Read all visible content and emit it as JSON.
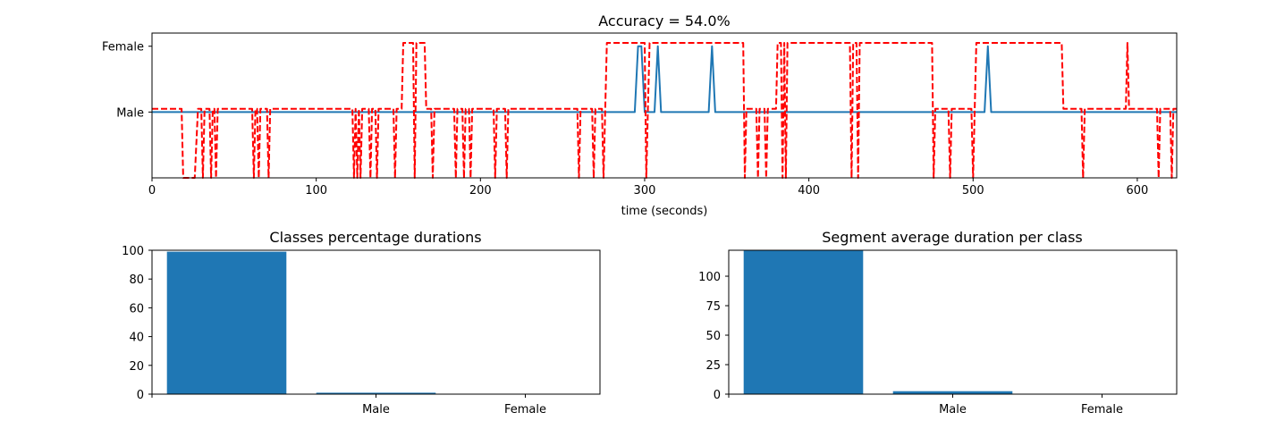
{
  "chart_data": [
    {
      "type": "line",
      "title": "Accuracy = 54.0%",
      "xlabel": "time (seconds)",
      "ylabel": "",
      "xlim": [
        0,
        624
      ],
      "ylim": [
        -1,
        1.2
      ],
      "x_ticks": [
        0,
        100,
        200,
        300,
        400,
        500,
        600
      ],
      "y_ticks": [
        {
          "value": 0,
          "label": "Male"
        },
        {
          "value": 1,
          "label": "Female"
        }
      ],
      "grid": false,
      "series": [
        {
          "color": "#1f77b4",
          "style": "solid",
          "points": [
            [
              0,
              0
            ],
            [
              294,
              0
            ],
            [
              296,
              1
            ],
            [
              298,
              1
            ],
            [
              300,
              0
            ],
            [
              306,
              0
            ],
            [
              308,
              1
            ],
            [
              310,
              0
            ],
            [
              339,
              0
            ],
            [
              341,
              1
            ],
            [
              343,
              0
            ],
            [
              507,
              0
            ],
            [
              509,
              1
            ],
            [
              511,
              0
            ],
            [
              624,
              0
            ]
          ]
        },
        {
          "color": "#ff0000",
          "style": "dashed",
          "points": [
            [
              0,
              0.05
            ],
            [
              18,
              0.05
            ],
            [
              19,
              -1
            ],
            [
              26,
              -1
            ],
            [
              28,
              0.05
            ],
            [
              30,
              0.05
            ],
            [
              31,
              -1
            ],
            [
              32,
              0.05
            ],
            [
              35,
              0.05
            ],
            [
              36,
              -1
            ],
            [
              37,
              0.05
            ],
            [
              38,
              0.05
            ],
            [
              39,
              -1
            ],
            [
              40,
              0.05
            ],
            [
              61,
              0.05
            ],
            [
              62,
              -1
            ],
            [
              63,
              0.05
            ],
            [
              64,
              0.05
            ],
            [
              65,
              -1
            ],
            [
              66,
              0.05
            ],
            [
              70,
              0.05
            ],
            [
              71,
              -1
            ],
            [
              72,
              0.05
            ],
            [
              122,
              0.05
            ],
            [
              123,
              -1
            ],
            [
              124,
              0.05
            ],
            [
              125,
              -1
            ],
            [
              126,
              0.05
            ],
            [
              127,
              -1
            ],
            [
              128,
              0.05
            ],
            [
              132,
              0.05
            ],
            [
              133,
              -1
            ],
            [
              134,
              0.05
            ],
            [
              136,
              0.05
            ],
            [
              137,
              -1
            ],
            [
              138,
              0.05
            ],
            [
              147,
              0.05
            ],
            [
              148,
              -1
            ],
            [
              149,
              0.05
            ],
            [
              152,
              0.05
            ],
            [
              153,
              1.05
            ],
            [
              159,
              1.05
            ],
            [
              160,
              -1
            ],
            [
              161,
              1.05
            ],
            [
              166,
              1.05
            ],
            [
              167,
              0.05
            ],
            [
              170,
              0.05
            ],
            [
              171,
              -1
            ],
            [
              172,
              0.05
            ],
            [
              184,
              0.05
            ],
            [
              185,
              -1
            ],
            [
              186,
              0.05
            ],
            [
              189,
              0.05
            ],
            [
              190,
              -1
            ],
            [
              191,
              0.05
            ],
            [
              193,
              0.05
            ],
            [
              194,
              -1
            ],
            [
              195,
              0.05
            ],
            [
              208,
              0.05
            ],
            [
              209,
              -1
            ],
            [
              210,
              0.05
            ],
            [
              215,
              0.05
            ],
            [
              216,
              -1
            ],
            [
              217,
              0.05
            ],
            [
              259,
              0.05
            ],
            [
              260,
              -1
            ],
            [
              261,
              0.05
            ],
            [
              268,
              0.05
            ],
            [
              269,
              -1
            ],
            [
              270,
              0.05
            ],
            [
              274,
              0.05
            ],
            [
              275,
              -1
            ],
            [
              276,
              0.05
            ],
            [
              277,
              1.05
            ],
            [
              300,
              1.05
            ],
            [
              301,
              -1
            ],
            [
              302,
              0.05
            ],
            [
              303,
              1.05
            ],
            [
              360,
              1.05
            ],
            [
              361,
              -1
            ],
            [
              362,
              0.05
            ],
            [
              368,
              0.05
            ],
            [
              369,
              -1
            ],
            [
              370,
              0.05
            ],
            [
              373,
              0.05
            ],
            [
              374,
              -1
            ],
            [
              375,
              0.05
            ],
            [
              380,
              0.05
            ],
            [
              381,
              1.05
            ],
            [
              383,
              1.05
            ],
            [
              384,
              -1
            ],
            [
              385,
              1.05
            ],
            [
              386,
              -1
            ],
            [
              387,
              1.05
            ],
            [
              425,
              1.05
            ],
            [
              426,
              -1
            ],
            [
              427,
              1.05
            ],
            [
              429,
              1.05
            ],
            [
              430,
              -1
            ],
            [
              431,
              1.05
            ],
            [
              475,
              1.05
            ],
            [
              476,
              -1
            ],
            [
              477,
              0.05
            ],
            [
              485,
              0.05
            ],
            [
              486,
              -1
            ],
            [
              487,
              0.05
            ],
            [
              499,
              0.05
            ],
            [
              500,
              -1
            ],
            [
              501,
              0.05
            ],
            [
              502,
              1.05
            ],
            [
              554,
              1.05
            ],
            [
              555,
              0.05
            ],
            [
              566,
              0.05
            ],
            [
              567,
              -1
            ],
            [
              568,
              0.05
            ],
            [
              593,
              0.05
            ],
            [
              594,
              1.05
            ],
            [
              595,
              0.05
            ],
            [
              612,
              0.05
            ],
            [
              613,
              -1
            ],
            [
              614,
              0.05
            ],
            [
              620,
              0.05
            ],
            [
              621,
              -1
            ],
            [
              622,
              0.05
            ],
            [
              624,
              0.05
            ]
          ]
        }
      ]
    },
    {
      "type": "bar",
      "title": "Classes percentage durations",
      "categories": [
        "Male",
        "Female"
      ],
      "values": [
        99,
        1
      ],
      "ylim": [
        0,
        100
      ],
      "y_ticks": [
        0,
        20,
        40,
        60,
        80,
        100
      ],
      "xlim": [
        -0.5,
        2.5
      ],
      "bar_x": [
        0,
        1
      ],
      "category_tick_x": [
        1,
        2
      ],
      "color": "#1f77b4"
    },
    {
      "type": "bar",
      "title": "Segment average duration per class",
      "categories": [
        "Male",
        "Female"
      ],
      "values": [
        130,
        2.5
      ],
      "ylim": [
        0,
        122
      ],
      "y_ticks": [
        0,
        25,
        50,
        75,
        100
      ],
      "xlim": [
        -0.5,
        2.5
      ],
      "bar_x": [
        0,
        1
      ],
      "category_tick_x": [
        1,
        2
      ],
      "color": "#1f77b4"
    }
  ]
}
